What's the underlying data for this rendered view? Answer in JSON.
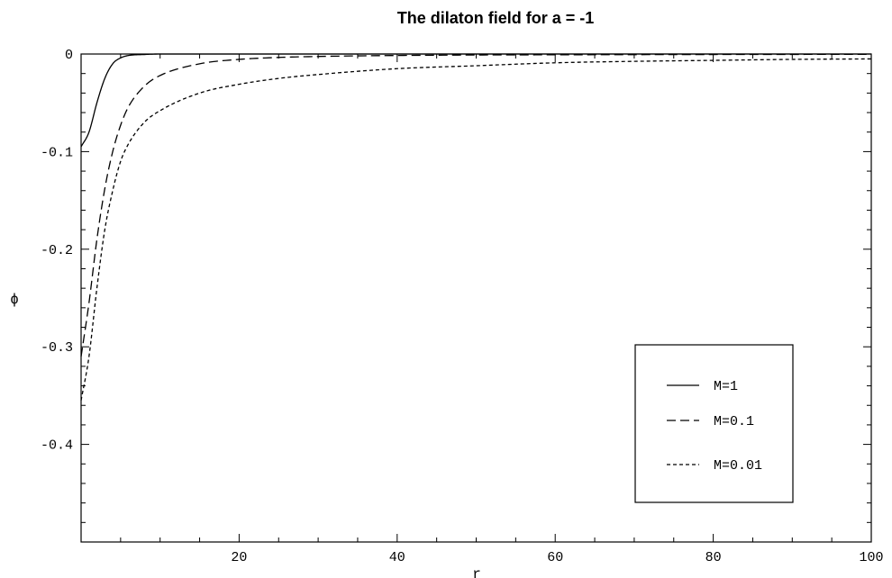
{
  "chart_data": {
    "type": "line",
    "title": "The dilaton field for a = -1",
    "xlabel": "r",
    "ylabel": "ϕ",
    "xlim": [
      0,
      100
    ],
    "ylim": [
      -0.5,
      0
    ],
    "x_ticks": [
      20,
      40,
      60,
      80,
      100
    ],
    "x_tick_labels": [
      "20",
      "40",
      "60",
      "80",
      "100"
    ],
    "y_ticks": [
      0,
      -0.1,
      -0.2,
      -0.3,
      -0.4
    ],
    "y_tick_labels": [
      "0",
      "-0.1",
      "-0.2",
      "-0.3",
      "-0.4"
    ],
    "grid": false,
    "legend_position": "bottom-right",
    "series": [
      {
        "name": "M=1",
        "line_style": "solid",
        "x": [
          0,
          1,
          2,
          3,
          4,
          5,
          6,
          8,
          10,
          15,
          20,
          40,
          60,
          80,
          100
        ],
        "y": [
          -0.095,
          -0.08,
          -0.05,
          -0.025,
          -0.01,
          -0.004,
          -0.0015,
          -0.0005,
          0,
          0,
          0,
          0,
          0,
          0,
          0
        ]
      },
      {
        "name": "M=0.1",
        "line_style": "dashed",
        "x": [
          0,
          1,
          2,
          3,
          4,
          5,
          6,
          8,
          10,
          15,
          20,
          25,
          30,
          40,
          50,
          60,
          80,
          100
        ],
        "y": [
          -0.31,
          -0.255,
          -0.19,
          -0.138,
          -0.1,
          -0.073,
          -0.054,
          -0.033,
          -0.022,
          -0.01,
          -0.0055,
          -0.0035,
          -0.0025,
          -0.0015,
          -0.001,
          -0.0008,
          -0.0005,
          -0.0003
        ]
      },
      {
        "name": "M=0.01",
        "line_style": "dotted",
        "x": [
          0,
          1,
          2,
          3,
          4,
          5,
          6,
          8,
          10,
          15,
          20,
          25,
          30,
          40,
          50,
          60,
          70,
          80,
          90,
          100
        ],
        "y": [
          -0.355,
          -0.31,
          -0.24,
          -0.18,
          -0.14,
          -0.11,
          -0.092,
          -0.07,
          -0.058,
          -0.04,
          -0.031,
          -0.025,
          -0.021,
          -0.015,
          -0.012,
          -0.009,
          -0.0075,
          -0.0065,
          -0.0055,
          -0.005
        ]
      }
    ]
  }
}
